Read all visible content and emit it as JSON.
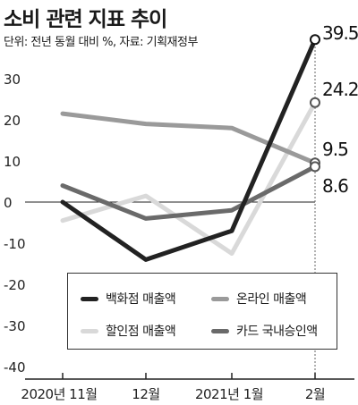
{
  "header": {
    "title": "소비 관련 지표 추이",
    "subtitle": "단위: 전년 동월 대비 %, 자료: 기획재정부"
  },
  "chart_data": {
    "type": "line",
    "title": "소비 관련 지표 추이",
    "subtitle": "단위: 전년 동월 대비 %, 자료: 기획재정부",
    "categories": [
      "2020년 11월",
      "12월",
      "2021년 1월",
      "2월"
    ],
    "yticks": [
      30,
      20,
      10,
      0,
      -10,
      -20,
      -30,
      -40
    ],
    "ylim": [
      -40,
      35
    ],
    "grid": false,
    "legend_position": "bottom-right",
    "series": [
      {
        "name": "백화점 매출액",
        "values": [
          0,
          -14,
          -7,
          39.5
        ],
        "color": "#222222",
        "end_label": "39.5"
      },
      {
        "name": "온라인 매출액",
        "values": [
          21.5,
          19,
          18,
          9.5
        ],
        "color": "#9a9a9a",
        "end_label": "9.5"
      },
      {
        "name": "할인점 매출액",
        "values": [
          -4.5,
          1.5,
          -12.5,
          24.2
        ],
        "color": "#d9d9d9",
        "end_label": "24.2"
      },
      {
        "name": "카드 국내승인액",
        "values": [
          4,
          -4,
          -2,
          8.6
        ],
        "color": "#6a6a6a",
        "end_label": "8.6"
      }
    ]
  }
}
